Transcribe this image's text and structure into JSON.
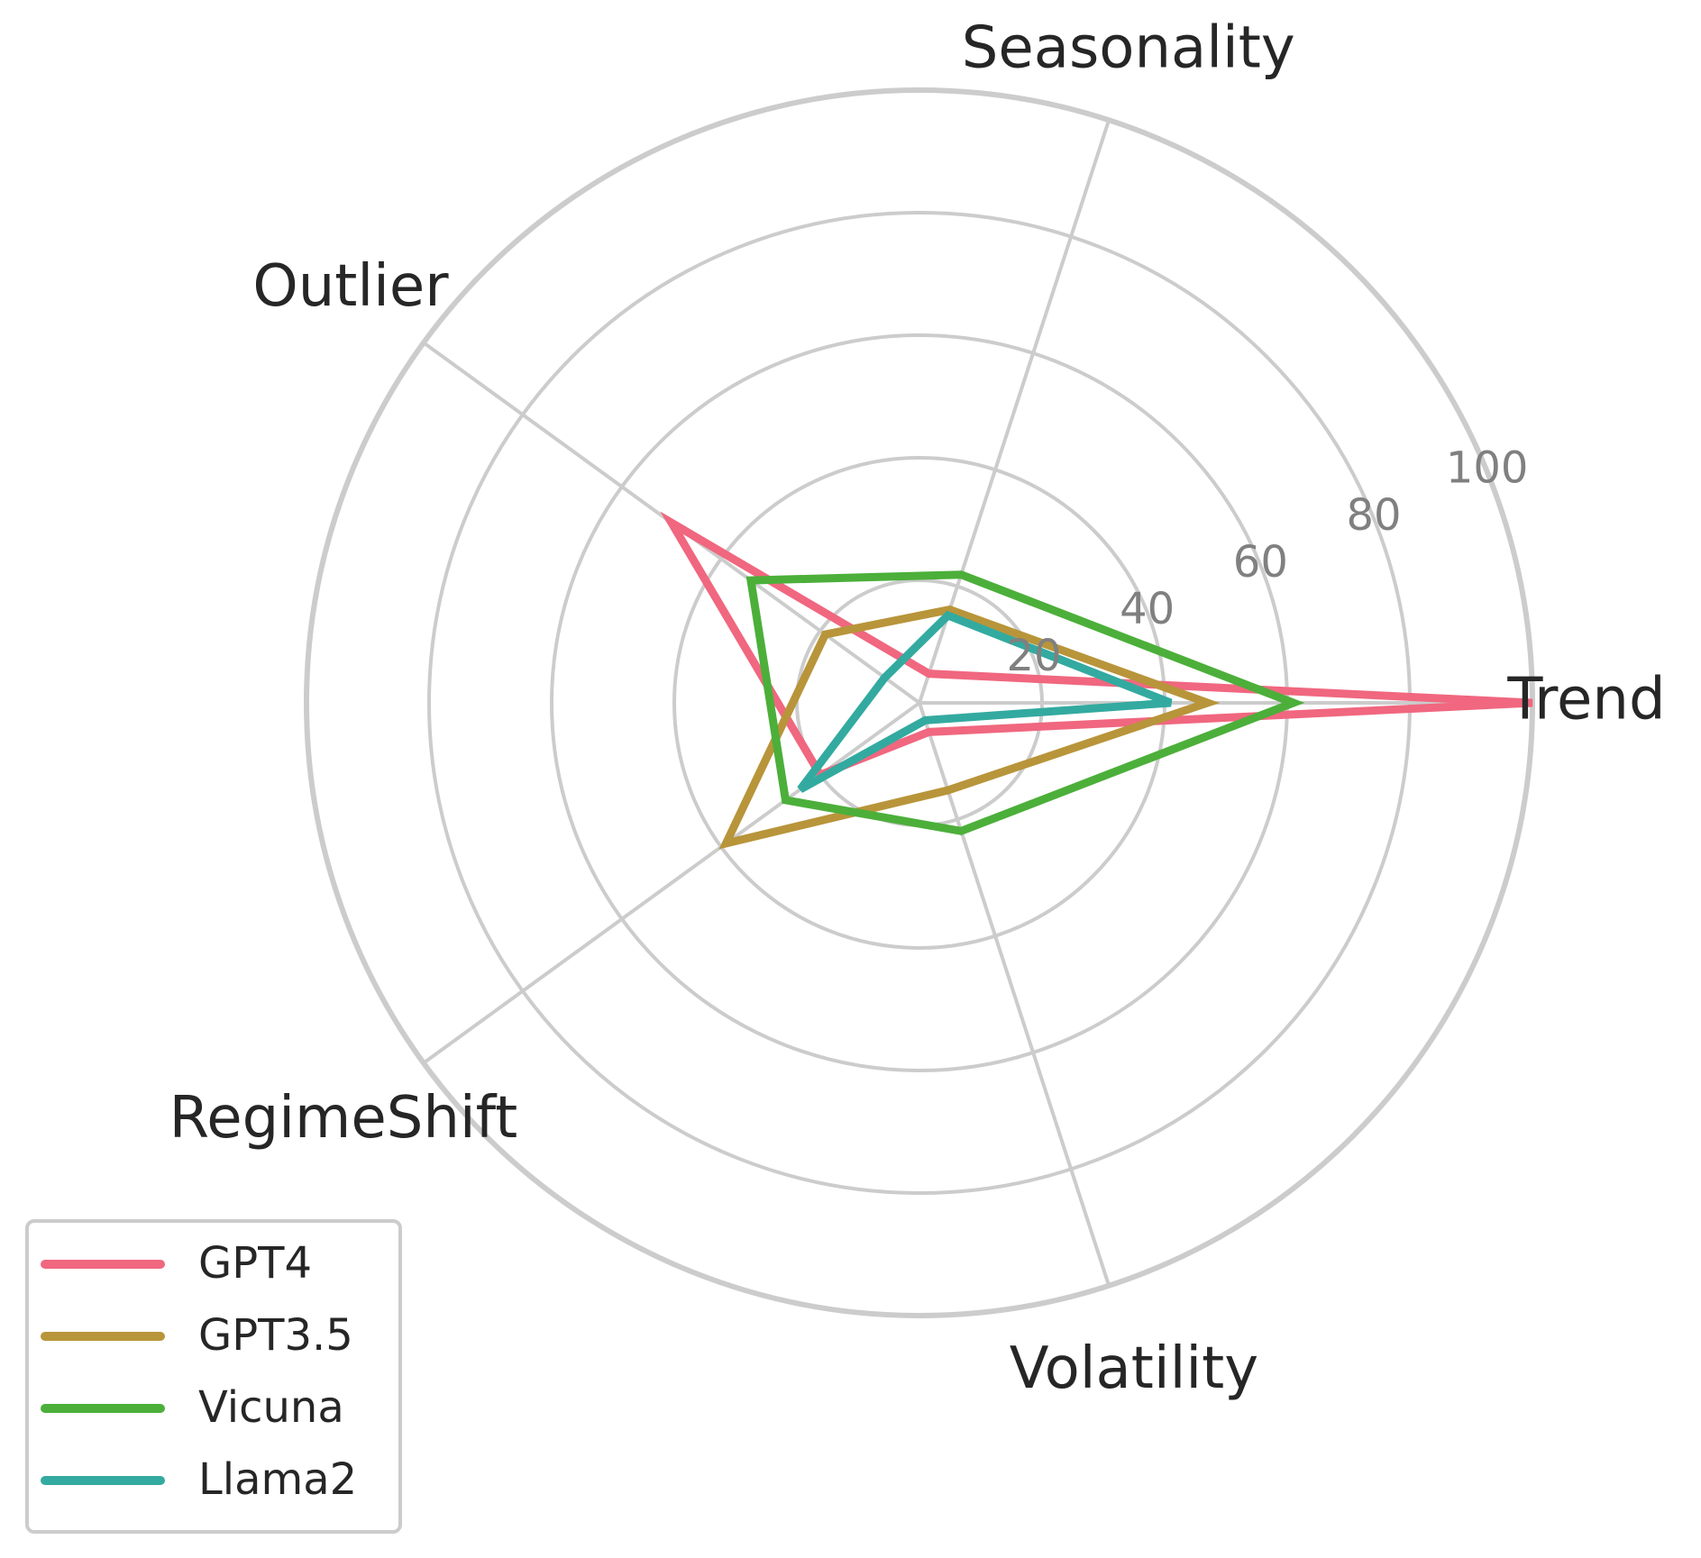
{
  "chart_data": {
    "type": "radar",
    "axes": [
      "Trend",
      "Seasonality",
      "Outlier",
      "RegimeShift",
      "Volatility"
    ],
    "rlim": [
      0,
      100
    ],
    "rticks": [
      20,
      40,
      60,
      80,
      100
    ],
    "rtick_labels": [
      "20",
      "40",
      "60",
      "80",
      "100"
    ],
    "grid": true,
    "legend_position": "lower-left",
    "series": [
      {
        "name": "GPT4",
        "color": "#f0677f",
        "values": [
          100,
          5,
          50,
          20,
          5
        ]
      },
      {
        "name": "GPT3.5",
        "color": "#b8953a",
        "values": [
          47,
          16,
          19,
          39,
          15
        ]
      },
      {
        "name": "Vicuna",
        "color": "#4caf3a",
        "values": [
          61,
          22,
          34,
          27,
          22
        ]
      },
      {
        "name": "Llama2",
        "color": "#33aaa0",
        "values": [
          41,
          15,
          7,
          24,
          3
        ]
      }
    ]
  }
}
